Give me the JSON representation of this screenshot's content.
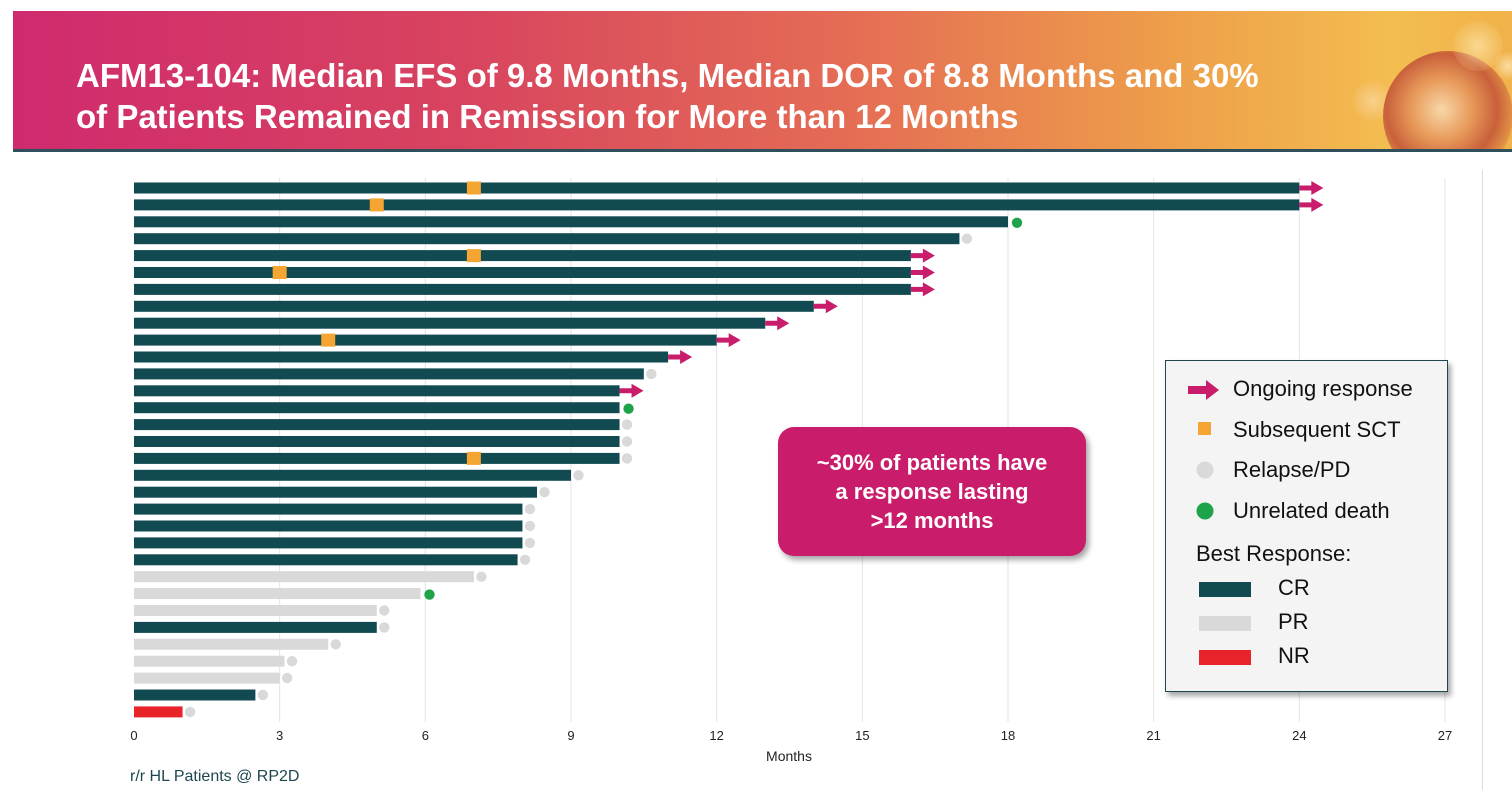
{
  "slide": {
    "title_line1": "AFM13-104: Median EFS of 9.8 Months, Median DOR of 8.8 Months and 30%",
    "title_line2": "of Patients Remained in Remission for More than 12 Months",
    "callout_lines": [
      "~30% of patients have",
      "a response lasting",
      ">12 months"
    ],
    "footnote": "r/r HL Patients @ RP2D"
  },
  "legend": {
    "markers": [
      {
        "label": "Ongoing response",
        "icon": "arrow-right-icon",
        "color": "#c91d6b"
      },
      {
        "label": "Subsequent SCT",
        "icon": "square-icon",
        "color": "#f5a531"
      },
      {
        "label": "Relapse/PD",
        "icon": "circle-icon",
        "color": "#d9d9d9"
      },
      {
        "label": "Unrelated death",
        "icon": "circle-icon",
        "color": "#1fa34a"
      }
    ],
    "best_response_title": "Best Response:",
    "responses": [
      {
        "label": "CR",
        "color": "#124a52"
      },
      {
        "label": "PR",
        "color": "#d9d9d9"
      },
      {
        "label": "NR",
        "color": "#e8232a"
      }
    ]
  },
  "colors": {
    "CR": "#124a52",
    "PR": "#d9d9d9",
    "NR": "#e8232a",
    "ongoing": "#c91d6b",
    "sct": "#f5a531",
    "relapse": "#d9d9d9",
    "death": "#1fa34a"
  },
  "chart_data": {
    "type": "bar",
    "orientation": "horizontal",
    "xlabel": "Months",
    "ylabel": "",
    "xlim": [
      0,
      27
    ],
    "xticks": [
      0,
      3,
      6,
      9,
      12,
      15,
      18,
      21,
      24,
      27
    ],
    "grid": true,
    "legend_position": "right",
    "patients": [
      {
        "duration": 24,
        "response": "CR",
        "event": "ongoing",
        "sct": 7
      },
      {
        "duration": 24,
        "response": "CR",
        "event": "ongoing",
        "sct": 5
      },
      {
        "duration": 18,
        "response": "CR",
        "event": "death",
        "sct": null
      },
      {
        "duration": 17,
        "response": "CR",
        "event": "relapse",
        "sct": null
      },
      {
        "duration": 16,
        "response": "CR",
        "event": "ongoing",
        "sct": 7
      },
      {
        "duration": 16,
        "response": "CR",
        "event": "ongoing",
        "sct": 3
      },
      {
        "duration": 16,
        "response": "CR",
        "event": "ongoing",
        "sct": null
      },
      {
        "duration": 14,
        "response": "CR",
        "event": "ongoing",
        "sct": null
      },
      {
        "duration": 13,
        "response": "CR",
        "event": "ongoing",
        "sct": null
      },
      {
        "duration": 12,
        "response": "CR",
        "event": "ongoing",
        "sct": 4
      },
      {
        "duration": 11,
        "response": "CR",
        "event": "ongoing",
        "sct": null
      },
      {
        "duration": 10.5,
        "response": "CR",
        "event": "relapse",
        "sct": null
      },
      {
        "duration": 10,
        "response": "CR",
        "event": "ongoing",
        "sct": null
      },
      {
        "duration": 10,
        "response": "CR",
        "event": "death",
        "sct": null
      },
      {
        "duration": 10,
        "response": "CR",
        "event": "relapse",
        "sct": null
      },
      {
        "duration": 10,
        "response": "CR",
        "event": "relapse",
        "sct": null
      },
      {
        "duration": 10,
        "response": "CR",
        "event": "relapse",
        "sct": 7
      },
      {
        "duration": 9,
        "response": "CR",
        "event": "relapse",
        "sct": null
      },
      {
        "duration": 8.3,
        "response": "CR",
        "event": "relapse",
        "sct": null
      },
      {
        "duration": 8,
        "response": "CR",
        "event": "relapse",
        "sct": null
      },
      {
        "duration": 8,
        "response": "CR",
        "event": "relapse",
        "sct": null
      },
      {
        "duration": 8,
        "response": "CR",
        "event": "relapse",
        "sct": null
      },
      {
        "duration": 7.9,
        "response": "CR",
        "event": "relapse",
        "sct": null
      },
      {
        "duration": 7,
        "response": "PR",
        "event": "relapse",
        "sct": null
      },
      {
        "duration": 5.9,
        "response": "PR",
        "event": "death",
        "sct": null
      },
      {
        "duration": 5,
        "response": "PR",
        "event": "relapse",
        "sct": null
      },
      {
        "duration": 5,
        "response": "CR",
        "event": "relapse",
        "sct": null
      },
      {
        "duration": 4,
        "response": "PR",
        "event": "relapse",
        "sct": null
      },
      {
        "duration": 3.1,
        "response": "PR",
        "event": "relapse",
        "sct": null
      },
      {
        "duration": 3,
        "response": "PR",
        "event": "relapse",
        "sct": null
      },
      {
        "duration": 2.5,
        "response": "CR",
        "event": "relapse",
        "sct": null
      },
      {
        "duration": 1,
        "response": "NR",
        "event": "relapse",
        "sct": null
      }
    ]
  }
}
